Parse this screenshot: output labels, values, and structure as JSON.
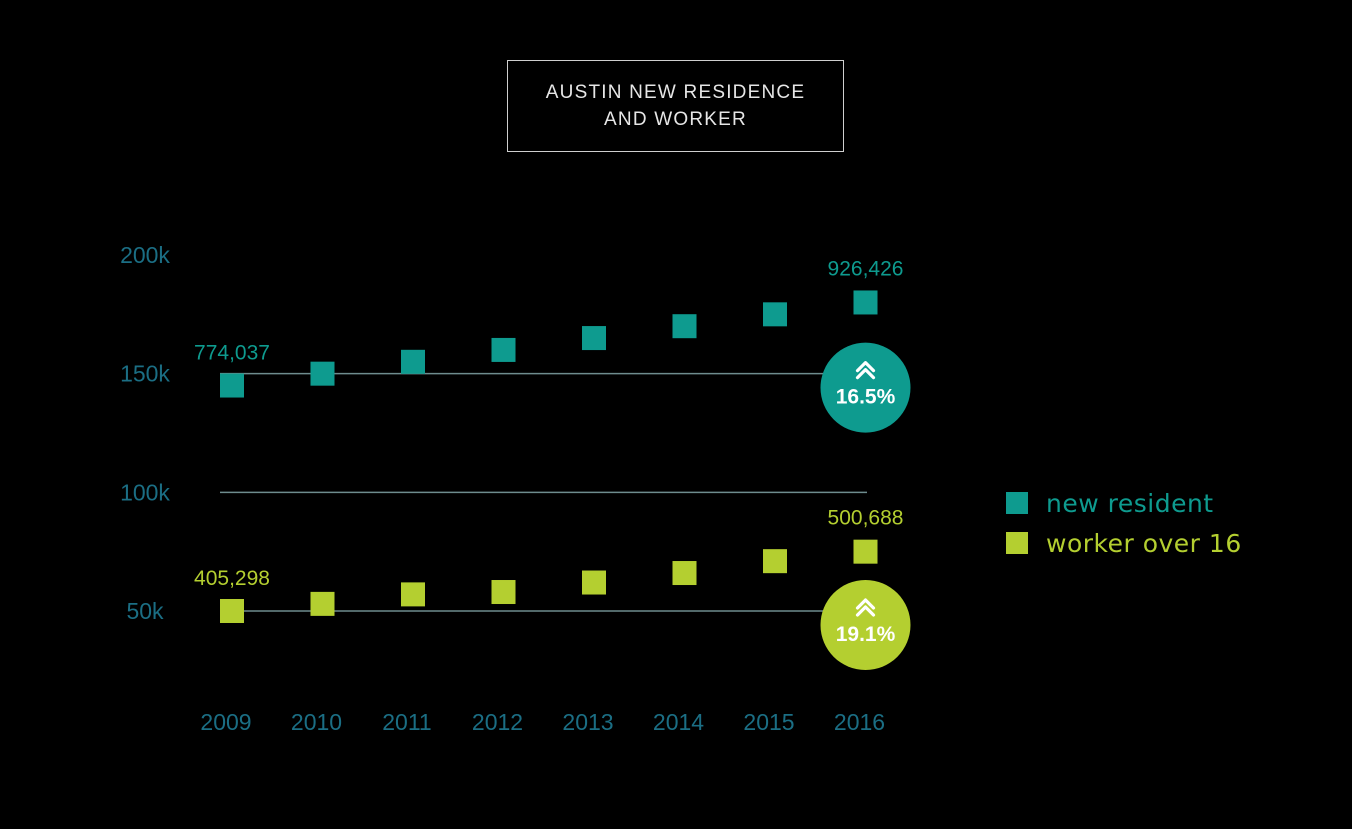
{
  "chart_data": {
    "type": "scatter",
    "title": [
      "AUSTIN NEW RESIDENCE",
      "AND WORKER"
    ],
    "categories": [
      "2009",
      "2010",
      "2011",
      "2012",
      "2013",
      "2014",
      "2015",
      "2016"
    ],
    "y_ticks": [
      "200k",
      "150k",
      "100k",
      "50k"
    ],
    "y_tick_values": [
      200,
      150,
      100,
      50
    ],
    "ylim": [
      50,
      200
    ],
    "series": [
      {
        "name": "new resident",
        "color": "#0e9b8f",
        "values": [
          145,
          150,
          155,
          160,
          165,
          170,
          175,
          180
        ],
        "start_label": "774,037",
        "end_label": "926,426",
        "change": "16.5%",
        "baseline": 150
      },
      {
        "name": "worker over 16",
        "color": "#b4cf30",
        "values": [
          50,
          53,
          57,
          58,
          62,
          66,
          71,
          75
        ],
        "start_label": "405,298",
        "end_label": "500,688",
        "change": "19.1%",
        "baseline": 50
      }
    ],
    "reference_line": 100,
    "axis_color": "#1b6e84",
    "legend_position": "right"
  }
}
